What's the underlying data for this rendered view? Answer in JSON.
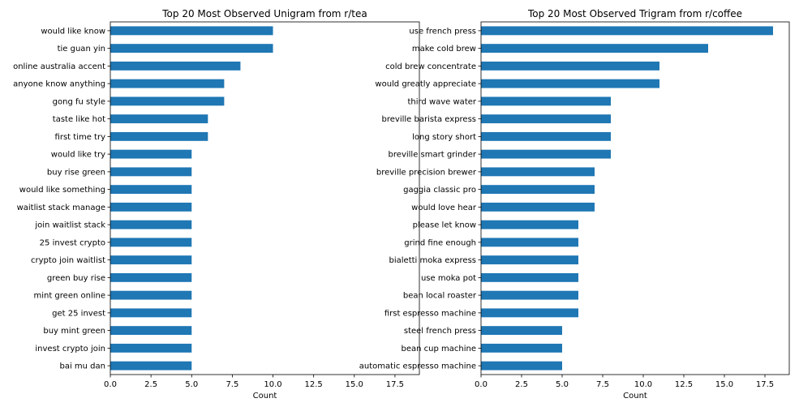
{
  "chart_data": [
    {
      "type": "bar",
      "orientation": "horizontal",
      "title": "Top 20 Most Observed Unigram from r/tea",
      "xlabel": "Count",
      "ylabel": "",
      "xlim": [
        0,
        19
      ],
      "xticks": [
        "0.0",
        "2.5",
        "5.0",
        "7.5",
        "10.0",
        "12.5",
        "15.0",
        "17.5"
      ],
      "bar_color": "#1f77b4",
      "grid": false,
      "categories": [
        "would like know",
        "tie guan yin",
        "online australia accent",
        "anyone know anything",
        "gong fu style",
        "taste like hot",
        "first time try",
        "would like try",
        "buy rise green",
        "would like something",
        "waitlist stack manage",
        "join waitlist stack",
        "25 invest crypto",
        "crypto join waitlist",
        "green buy rise",
        "mint green online",
        "get 25 invest",
        "buy mint green",
        "invest crypto join",
        "bai mu dan"
      ],
      "values": [
        10,
        10,
        8,
        7,
        7,
        6,
        6,
        5,
        5,
        5,
        5,
        5,
        5,
        5,
        5,
        5,
        5,
        5,
        5,
        5
      ]
    },
    {
      "type": "bar",
      "orientation": "horizontal",
      "title": "Top 20 Most Observed Trigram from r/coffee",
      "xlabel": "Count",
      "ylabel": "",
      "xlim": [
        0,
        19
      ],
      "xticks": [
        "0.0",
        "2.5",
        "5.0",
        "7.5",
        "10.0",
        "12.5",
        "15.0",
        "17.5"
      ],
      "bar_color": "#1f77b4",
      "grid": false,
      "categories": [
        "use french press",
        "make cold brew",
        "cold brew concentrate",
        "would greatly appreciate",
        "third wave water",
        "breville barista express",
        "long story short",
        "breville smart grinder",
        "breville precision brewer",
        "gaggia classic pro",
        "would love hear",
        "please let know",
        "grind fine enough",
        "bialetti moka express",
        "use moka pot",
        "bean local roaster",
        "first espresso machine",
        "steel french press",
        "bean cup machine",
        "automatic espresso machine"
      ],
      "values": [
        18,
        14,
        11,
        11,
        8,
        8,
        8,
        8,
        7,
        7,
        7,
        6,
        6,
        6,
        6,
        6,
        6,
        5,
        5,
        5
      ]
    }
  ]
}
